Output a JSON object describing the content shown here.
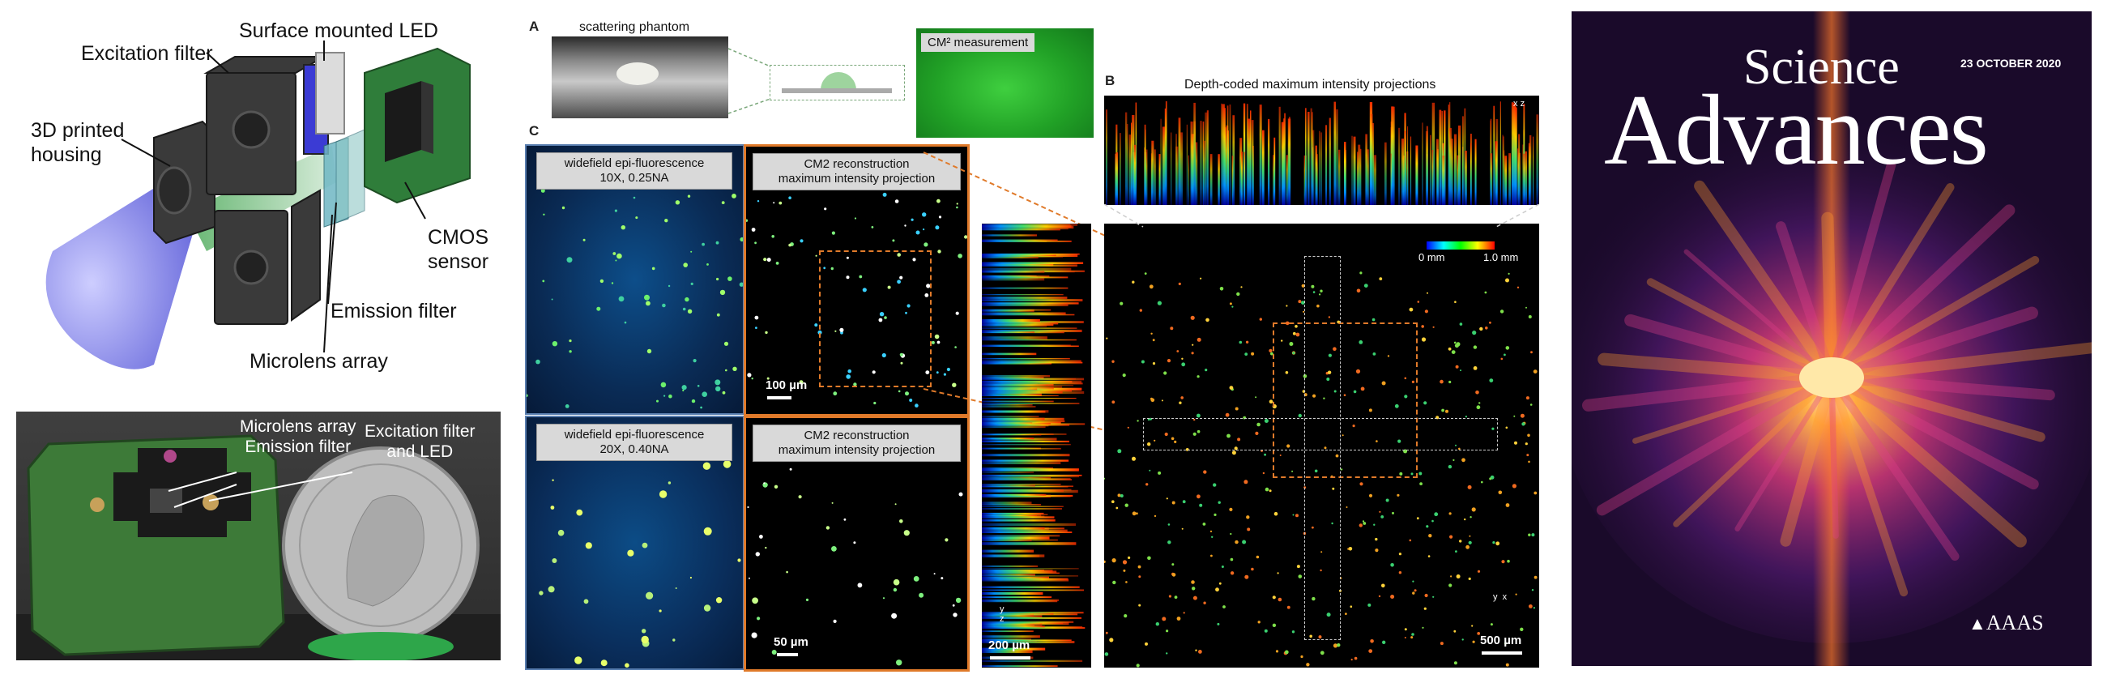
{
  "device_labels": {
    "led": "Surface mounted LED",
    "excitation": "Excitation filter",
    "housing": "3D printed\nhousing",
    "cmos": "CMOS\nsensor",
    "emission": "Emission filter",
    "microlens": "Microlens array"
  },
  "photo_labels": {
    "microlens_emission": "Microlens array\nEmission filter",
    "excitation_led": "Excitation filter\nand LED"
  },
  "panel_letters": {
    "a": "A",
    "b": "B",
    "c": "C"
  },
  "panel_a": {
    "phantom": "scattering phantom",
    "measurement": "CM² measurement"
  },
  "panel_b": {
    "mip_title": "Depth-coded maximum intensity projections",
    "colorbar_min": "0 mm",
    "colorbar_max": "1.0 mm",
    "scale_500": "500 µm",
    "scale_200": "200 µm",
    "axis_x": "x",
    "axis_y": "y",
    "axis_z": "z"
  },
  "panel_c": {
    "wf_10x": "widefield epi-fluorescence\n10X, 0.25NA",
    "cm2_recon_1": "CM2 reconstruction\nmaximum intensity projection",
    "wf_20x": "widefield epi-fluorescence\n20X, 0.40NA",
    "cm2_recon_2": "CM2 reconstruction\nmaximum intensity projection",
    "scale_100": "100 µm",
    "scale_50": "50 µm"
  },
  "cover": {
    "science": "Science",
    "advances": "Advances",
    "date": "23 OCTOBER 2020",
    "publisher": "AAAS"
  },
  "colors": {
    "device_housing": "#3a3a3a",
    "pcb_green": "#2f7d3a",
    "light_cone": "#7b7cf0",
    "cover_bg": "#1a0a2a",
    "cover_glow": "#ff9a2e",
    "recon_orange": "#e07a2a"
  }
}
